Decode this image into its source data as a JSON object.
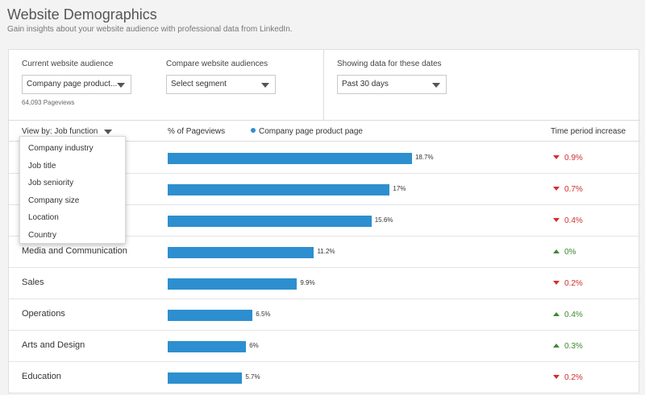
{
  "header": {
    "title": "Website Demographics",
    "subtitle": "Gain insights about your website audience with professional data from LinkedIn."
  },
  "filters": {
    "current_audience": {
      "label": "Current website audience",
      "value": "Company page product...",
      "note": "64,093 Pageviews"
    },
    "compare": {
      "label": "Compare website audiences",
      "value": "Select segment"
    },
    "dates": {
      "label": "Showing data for these dates",
      "value": "Past 30 days"
    }
  },
  "table": {
    "viewby_label": "View by: Job function",
    "pct_header": "% of Pageviews",
    "legend_label": "Company page product page",
    "increase_header": "Time period increase",
    "rows": [
      {
        "label": "",
        "pct": 18.7,
        "pct_text": "18.7%",
        "change": "0.9%",
        "dir": "down"
      },
      {
        "label": "",
        "pct": 17,
        "pct_text": "17%",
        "change": "0.7%",
        "dir": "down"
      },
      {
        "label": "",
        "pct": 15.6,
        "pct_text": "15.6%",
        "change": "0.4%",
        "dir": "down"
      },
      {
        "label": "Media and Communication",
        "pct": 11.2,
        "pct_text": "11.2%",
        "change": "0%",
        "dir": "up"
      },
      {
        "label": "Sales",
        "pct": 9.9,
        "pct_text": "9.9%",
        "change": "0.2%",
        "dir": "down"
      },
      {
        "label": "Operations",
        "pct": 6.5,
        "pct_text": "6.5%",
        "change": "0.4%",
        "dir": "up"
      },
      {
        "label": "Arts and Design",
        "pct": 6,
        "pct_text": "6%",
        "change": "0.3%",
        "dir": "up"
      },
      {
        "label": "Education",
        "pct": 5.7,
        "pct_text": "5.7%",
        "change": "0.2%",
        "dir": "down"
      }
    ]
  },
  "dropdown": {
    "items": [
      "Company industry",
      "Job title",
      "Job seniority",
      "Company size",
      "Location",
      "Country"
    ]
  },
  "colors": {
    "bar": "#2d8fcf",
    "negative": "#d12e2e",
    "positive": "#3c8a2f"
  },
  "icons": {
    "dropdown_caret": "caret-down-icon",
    "decrease": "triangle-down-icon",
    "increase": "triangle-up-icon",
    "legend": "legend-dot-icon"
  }
}
